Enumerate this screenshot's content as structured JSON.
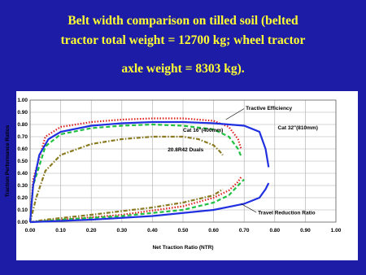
{
  "chart_data": {
    "type": "line",
    "title": [
      "Belt width comparison on tilled soil (belted",
      "tractor total weight = 12700 kg; wheel tractor",
      "axle weight = 8303 kg)."
    ],
    "x_label": "Net Traction Ratio (NTR)",
    "y_label": "Traction Performance Ratios",
    "annotations": [
      "Tractive Efficiency",
      "Travel Reduction Ratio"
    ],
    "xlim": [
      0,
      1
    ],
    "ylim": [
      0,
      1
    ],
    "grid": true,
    "xticks": [
      {
        "value": 0,
        "label": "0.00"
      },
      {
        "value": 0.1,
        "label": "0.10"
      },
      {
        "value": 0.2,
        "label": "0.20"
      },
      {
        "value": 0.3,
        "label": "0.30"
      },
      {
        "value": 0.4,
        "label": "0.40"
      },
      {
        "value": 0.5,
        "label": "0.50"
      },
      {
        "value": 0.6,
        "label": "0.60"
      },
      {
        "value": 0.7,
        "label": "0.70"
      },
      {
        "value": 0.8,
        "label": "0.80"
      },
      {
        "value": 0.9,
        "label": "0.90"
      },
      {
        "value": 1,
        "label": "1.00"
      }
    ],
    "yticks": [
      {
        "value": 0,
        "label": "0.00"
      },
      {
        "value": 0.1,
        "label": "0.10"
      },
      {
        "value": 0.2,
        "label": "0.20"
      },
      {
        "value": 0.3,
        "label": "0.30"
      },
      {
        "value": 0.4,
        "label": "0.40"
      },
      {
        "value": 0.5,
        "label": "0.50"
      },
      {
        "value": 0.6,
        "label": "0.60"
      },
      {
        "value": 0.7,
        "label": "0.70"
      },
      {
        "value": 0.8,
        "label": "0.80"
      },
      {
        "value": 0.9,
        "label": "0.90"
      },
      {
        "value": 1,
        "label": "1.00"
      }
    ],
    "series": [
      {
        "color": "#e02020",
        "dash": "1.5 2",
        "efficiency": {
          "x": [
            0,
            0.01,
            0.05,
            0.1,
            0.2,
            0.3,
            0.4,
            0.5,
            0.6,
            0.65,
            0.68,
            0.69
          ],
          "values": [
            0,
            0.35,
            0.7,
            0.78,
            0.82,
            0.84,
            0.85,
            0.85,
            0.83,
            0.78,
            0.68,
            0.6
          ]
        },
        "travel_reduction": {
          "x": [
            0,
            0.1,
            0.3,
            0.5,
            0.6,
            0.65,
            0.68,
            0.69
          ],
          "values": [
            0,
            0.02,
            0.06,
            0.13,
            0.2,
            0.26,
            0.33,
            0.37
          ]
        }
      },
      {
        "name": "Cat 16\"(400mm)",
        "color": "#20c040",
        "dash": "5 3",
        "efficiency": {
          "x": [
            0,
            0.01,
            0.05,
            0.1,
            0.2,
            0.3,
            0.4,
            0.5,
            0.6,
            0.65,
            0.68,
            0.69
          ],
          "values": [
            0,
            0.3,
            0.62,
            0.72,
            0.77,
            0.79,
            0.8,
            0.79,
            0.76,
            0.7,
            0.6,
            0.54
          ]
        },
        "travel_reduction": {
          "x": [
            0,
            0.1,
            0.3,
            0.5,
            0.6,
            0.65,
            0.68,
            0.7
          ],
          "values": [
            0,
            0.02,
            0.05,
            0.1,
            0.16,
            0.22,
            0.3,
            0.35
          ]
        }
      },
      {
        "name": "20.8R42 Duals",
        "color": "#8a7a20",
        "dash": "5 2 1.5 2",
        "efficiency": {
          "x": [
            0,
            0.02,
            0.05,
            0.1,
            0.2,
            0.3,
            0.4,
            0.5,
            0.55,
            0.6,
            0.62,
            0.63
          ],
          "values": [
            0,
            0.2,
            0.42,
            0.55,
            0.64,
            0.68,
            0.7,
            0.7,
            0.68,
            0.63,
            0.58,
            0.55
          ]
        },
        "travel_reduction": {
          "x": [
            0,
            0.05,
            0.2,
            0.4,
            0.5,
            0.6,
            0.63
          ],
          "values": [
            0,
            0.02,
            0.06,
            0.12,
            0.16,
            0.22,
            0.27
          ]
        }
      },
      {
        "name": "Cat 32\"(810mm)",
        "color": "#2030e0",
        "dash": "",
        "efficiency": {
          "x": [
            0,
            0.01,
            0.03,
            0.06,
            0.1,
            0.2,
            0.3,
            0.4,
            0.5,
            0.6,
            0.7,
            0.75,
            0.77,
            0.78
          ],
          "values": [
            0,
            0.3,
            0.55,
            0.68,
            0.74,
            0.79,
            0.81,
            0.82,
            0.82,
            0.81,
            0.79,
            0.74,
            0.6,
            0.45
          ]
        },
        "travel_reduction": {
          "x": [
            0,
            0.2,
            0.4,
            0.6,
            0.7,
            0.75,
            0.77,
            0.78
          ],
          "values": [
            0,
            0.02,
            0.05,
            0.1,
            0.15,
            0.2,
            0.27,
            0.32
          ]
        }
      }
    ]
  }
}
